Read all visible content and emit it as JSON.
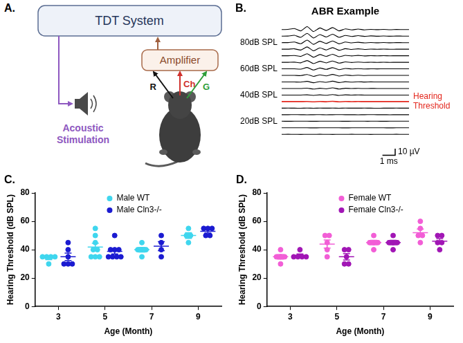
{
  "diagram": {
    "panel_label": "A.",
    "tdt": "TDT System",
    "amplifier": "Amplifier",
    "electrodes": [
      "R",
      "Ch",
      "G"
    ],
    "stimulus": "Acoustic Stimulation"
  },
  "chart_data": [
    {
      "panel_label": "B.",
      "type": "line",
      "title": "ABR Example",
      "x": [
        0,
        0.5,
        1,
        1.5,
        2,
        2.5,
        3,
        3.5,
        4,
        4.5,
        5,
        5.5,
        6,
        6.5,
        7,
        7.5,
        8,
        8.5,
        9,
        9.5,
        10
      ],
      "xlim": [
        0,
        10
      ],
      "ylim": [
        -5,
        5
      ],
      "tick_labels": false,
      "grid": false,
      "series": [
        {
          "color": "#000000",
          "values": [
            0,
            0.2,
            1.5,
            -2,
            4.5,
            -3,
            2.5,
            -1.5,
            3,
            -2,
            1,
            -0.5,
            0.8,
            -0.5,
            0.3,
            -0.2,
            0.3,
            -0.3,
            0.1,
            0,
            0
          ]
        },
        {
          "color": "#000000",
          "values": [
            0,
            0.1,
            1.2,
            -1.8,
            4.2,
            -2.8,
            2.4,
            -1.4,
            2.8,
            -1.9,
            1,
            -0.5,
            0.7,
            -0.4,
            0.3,
            -0.2,
            0.2,
            -0.2,
            0.1,
            0,
            0
          ]
        },
        {
          "color": "#000000",
          "label": "80dB SPL",
          "values": [
            0,
            0.1,
            0.9,
            -1.6,
            3.9,
            -2.6,
            2.2,
            -1.3,
            2.6,
            -1.8,
            0.9,
            -0.4,
            0.6,
            -0.4,
            0.2,
            -0.2,
            0.2,
            -0.2,
            0.1,
            0,
            0
          ]
        },
        {
          "color": "#000000",
          "values": [
            0,
            0,
            0.6,
            -1.3,
            3.5,
            -2.4,
            2,
            -1.2,
            2.4,
            -1.6,
            0.8,
            -0.4,
            0.6,
            -0.3,
            0.2,
            -0.1,
            0.2,
            -0.1,
            0,
            0,
            0
          ]
        },
        {
          "color": "#000000",
          "values": [
            0,
            0,
            0.4,
            -1,
            3.1,
            -2.2,
            1.8,
            -1,
            2.2,
            -1.5,
            0.7,
            -0.3,
            0.5,
            -0.3,
            0.2,
            -0.1,
            0.1,
            -0.1,
            0,
            0,
            0
          ]
        },
        {
          "color": "#000000",
          "values": [
            0,
            0,
            0.2,
            -0.8,
            2.6,
            -2,
            1.5,
            -0.9,
            2,
            -1.3,
            0.6,
            -0.3,
            0.4,
            -0.2,
            0.1,
            -0.1,
            0.1,
            -0.1,
            0,
            0,
            0
          ]
        },
        {
          "color": "#000000",
          "label": "60dB SPL",
          "values": [
            0,
            0,
            0.1,
            -0.5,
            2,
            -1.8,
            1.2,
            -0.8,
            1.8,
            -1.2,
            0.6,
            -0.2,
            0.4,
            -0.2,
            0.1,
            -0.1,
            0.1,
            0,
            0,
            0,
            0
          ]
        },
        {
          "color": "#000000",
          "values": [
            0,
            0,
            0,
            -0.3,
            1.4,
            -1.5,
            0.9,
            -0.7,
            1.5,
            -1,
            0.5,
            -0.2,
            0.3,
            -0.2,
            0.1,
            0,
            0.1,
            0,
            0,
            0,
            0
          ]
        },
        {
          "color": "#000000",
          "values": [
            0,
            0,
            0,
            -0.2,
            0.9,
            -1.2,
            0.6,
            -0.6,
            1.2,
            -0.9,
            0.4,
            -0.2,
            0.3,
            -0.1,
            0.1,
            0,
            0,
            0,
            0,
            0,
            0
          ]
        },
        {
          "color": "#000000",
          "values": [
            0,
            0,
            0,
            -0.1,
            0.5,
            -0.9,
            0.4,
            -0.5,
            1,
            -0.8,
            0.4,
            -0.1,
            0.2,
            -0.1,
            0.1,
            0,
            0,
            0,
            0,
            0,
            0
          ]
        },
        {
          "color": "#000000",
          "label": "40dB SPL",
          "values": [
            0,
            0,
            0,
            0,
            0.3,
            -0.6,
            0.3,
            -0.4,
            0.8,
            -0.6,
            0.3,
            -0.1,
            0.2,
            -0.1,
            0,
            0,
            0,
            0,
            0,
            0,
            0
          ]
        },
        {
          "color": "#e3261c",
          "annotation": "Hearing Threshold",
          "values": [
            0,
            0,
            0,
            0,
            0.1,
            -0.3,
            0.2,
            -0.2,
            0.5,
            -0.4,
            0.2,
            -0.1,
            0.1,
            0,
            0,
            0,
            0,
            0,
            0,
            0,
            0
          ]
        },
        {
          "color": "#000000",
          "values": [
            0,
            0.1,
            0,
            -0.1,
            0.1,
            -0.1,
            0.1,
            0,
            0.1,
            -0.1,
            0.1,
            0,
            0,
            0.1,
            0,
            -0.1,
            0,
            0,
            0.1,
            0,
            0
          ]
        },
        {
          "color": "#000000",
          "values": [
            0,
            0,
            0.1,
            0,
            -0.1,
            0,
            0.1,
            -0.1,
            0,
            0.1,
            0,
            0,
            -0.1,
            0,
            0.1,
            0,
            0,
            -0.1,
            0,
            0,
            0
          ]
        },
        {
          "color": "#000000",
          "label": "20dB SPL",
          "values": [
            0,
            -0.1,
            0,
            0.1,
            0,
            -0.1,
            0,
            0.1,
            0,
            0,
            -0.1,
            0,
            0.1,
            0,
            0,
            0,
            -0.1,
            0,
            0,
            0.1,
            0
          ]
        },
        {
          "color": "#000000",
          "values": [
            0,
            0,
            0.1,
            0,
            0,
            -0.1,
            0,
            0,
            0.1,
            0,
            -0.1,
            0,
            0,
            0.1,
            0,
            0,
            0,
            -0.1,
            0,
            0,
            0
          ]
        },
        {
          "color": "#000000",
          "values": [
            0,
            0.1,
            0,
            -0.1,
            0,
            0,
            0.1,
            0,
            -0.1,
            0,
            0,
            0.1,
            0,
            0,
            -0.1,
            0,
            0,
            0,
            0.1,
            0,
            0
          ]
        }
      ],
      "scale_bar": {
        "y_value": 10,
        "y_label": "10 µV",
        "x_value": 1,
        "x_label": "1 ms"
      }
    },
    {
      "panel_label": "C.",
      "type": "scatter",
      "categories": [
        3,
        5,
        7,
        9
      ],
      "x_label": "Age (Month)",
      "y_label": "Hearing Threshold (dB SPL)",
      "ylim": [
        0,
        80
      ],
      "yticks": [
        0,
        20,
        40,
        60,
        80
      ],
      "grid": false,
      "legend": "top",
      "series": [
        {
          "name": "Male WT",
          "color": "#3fd6ee",
          "marker": "circle",
          "values": [
            [
              35,
              35,
              35,
              30,
              35
            ],
            [
              55,
              50,
              45,
              40,
              40,
              35,
              35,
              35
            ],
            [
              45,
              40,
              40,
              40,
              35
            ],
            [
              55,
              50,
              50,
              45
            ]
          ],
          "mean": [
            34,
            41.9,
            40,
            50
          ],
          "sem": [
            1,
            2.7,
            1.6,
            2
          ]
        },
        {
          "name": "Male Cln3-/-",
          "color": "#1b1bd1",
          "marker": "circle",
          "values": [
            [
              30,
              30,
              30,
              35,
              40,
              45
            ],
            [
              50,
              40,
              40,
              35,
              35,
              35,
              35,
              40
            ],
            [
              50,
              45,
              40,
              35
            ],
            [
              55,
              55,
              55,
              50,
              50
            ]
          ],
          "mean": [
            35,
            38.8,
            42.5,
            53
          ],
          "sem": [
            2.6,
            1.8,
            3.2,
            1.2
          ]
        }
      ]
    },
    {
      "panel_label": "D.",
      "type": "scatter",
      "categories": [
        3,
        5,
        7,
        9
      ],
      "x_label": "Age (Month)",
      "y_label": "Hearing Threshold (dB SPL)",
      "ylim": [
        0,
        80
      ],
      "yticks": [
        0,
        20,
        40,
        60,
        80
      ],
      "grid": false,
      "legend": "top",
      "series": [
        {
          "name": "Female WT",
          "color": "#f25ed6",
          "marker": "circle",
          "values": [
            [
              40,
              35,
              35,
              30,
              35
            ],
            [
              50,
              50,
              45,
              40,
              35
            ],
            [
              50,
              45,
              45,
              45,
              40
            ],
            [
              60,
              55,
              50,
              50,
              45
            ]
          ],
          "mean": [
            35,
            44,
            45,
            52
          ],
          "sem": [
            1.6,
            2.9,
            1.6,
            2.5
          ]
        },
        {
          "name": "Female Cln3-/-",
          "color": "#a116b5",
          "marker": "circle",
          "values": [
            [
              40,
              35,
              35,
              35,
              35
            ],
            [
              40,
              40,
              35,
              30,
              30
            ],
            [
              50,
              45,
              45,
              45,
              40
            ],
            [
              50,
              50,
              45,
              45,
              40
            ]
          ],
          "mean": [
            36,
            35,
            45,
            46
          ],
          "sem": [
            1,
            2.2,
            1.6,
            1.9
          ]
        }
      ]
    }
  ]
}
